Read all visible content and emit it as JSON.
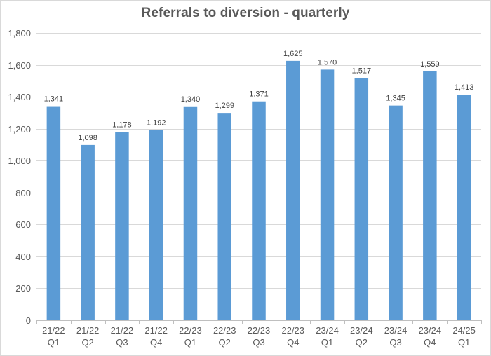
{
  "chart_data": {
    "type": "bar",
    "title": "Referrals to diversion - quarterly",
    "xlabel": "",
    "ylabel": "",
    "categories": [
      [
        "21/22",
        "Q1"
      ],
      [
        "21/22",
        "Q2"
      ],
      [
        "21/22",
        "Q3"
      ],
      [
        "21/22",
        "Q4"
      ],
      [
        "22/23",
        "Q1"
      ],
      [
        "22/23",
        "Q2"
      ],
      [
        "22/23",
        "Q3"
      ],
      [
        "22/23",
        "Q4"
      ],
      [
        "23/24",
        "Q1"
      ],
      [
        "23/24",
        "Q2"
      ],
      [
        "23/24",
        "Q3"
      ],
      [
        "23/24",
        "Q4"
      ],
      [
        "24/25",
        "Q1"
      ]
    ],
    "values": [
      1341,
      1098,
      1178,
      1192,
      1340,
      1299,
      1371,
      1625,
      1570,
      1517,
      1345,
      1559,
      1413
    ],
    "data_labels": [
      "1,341",
      "1,098",
      "1,178",
      "1,192",
      "1,340",
      "1,299",
      "1,371",
      "1,625",
      "1,570",
      "1,517",
      "1,345",
      "1,559",
      "1,413"
    ],
    "ylim": [
      0,
      1800
    ],
    "yticks": [
      0,
      200,
      400,
      600,
      800,
      1000,
      1200,
      1400,
      1600,
      1800
    ],
    "ytick_labels": [
      "0",
      "200",
      "400",
      "600",
      "800",
      "1,000",
      "1,200",
      "1,400",
      "1,600",
      "1,800"
    ],
    "grid": true,
    "legend": "none",
    "colors": {
      "bar": "#5b9bd5",
      "grid": "#d9d9d9",
      "axis": "#bfbfbf",
      "text": "#595959"
    }
  }
}
